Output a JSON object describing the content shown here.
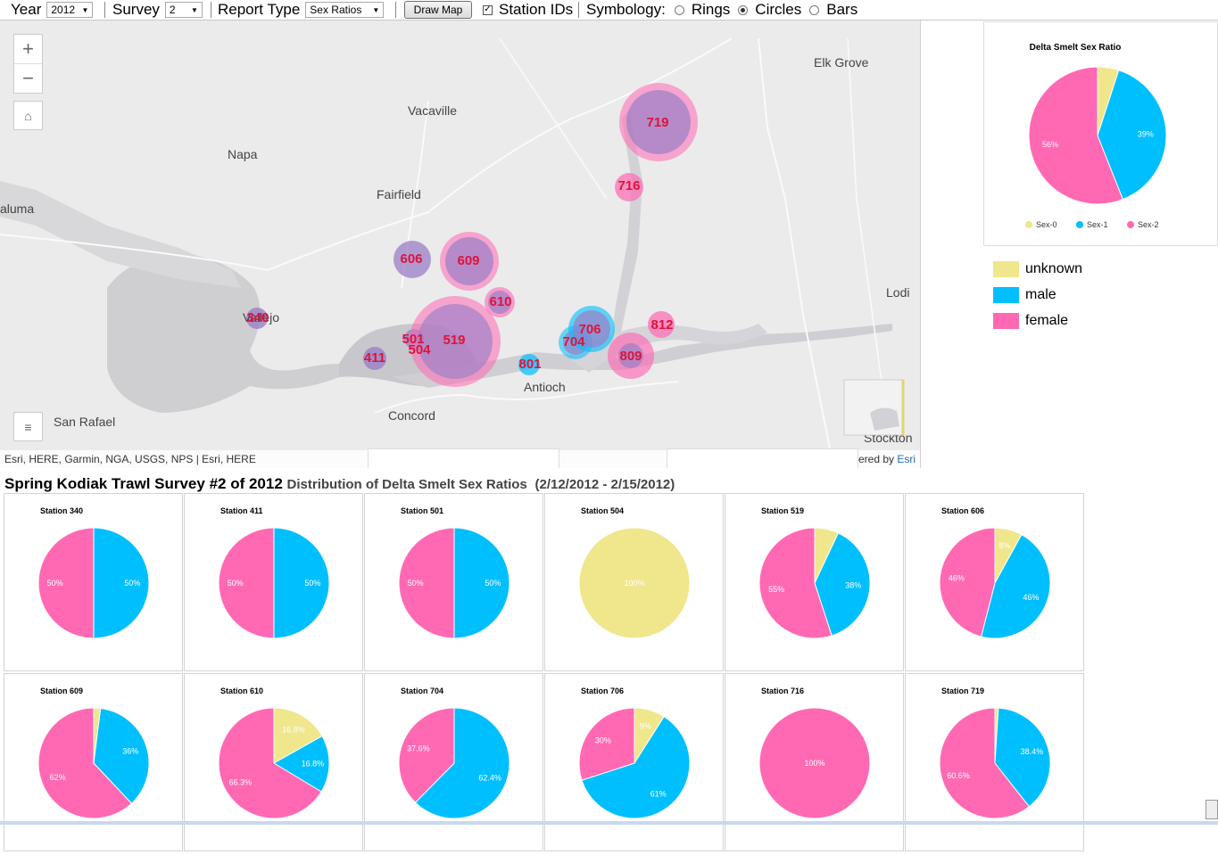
{
  "toolbar": {
    "year_label": "Year",
    "year_value": "2012",
    "survey_label": "Survey",
    "survey_value": "2",
    "report_label": "Report Type",
    "report_value": "Sex Ratios",
    "draw_button": "Draw Map",
    "station_ids_label": "Station IDs",
    "station_ids_checked": true,
    "symbology_label": "Symbology:",
    "symbology_options": [
      "Rings",
      "Circles",
      "Bars"
    ],
    "symbology_selected": "Circles"
  },
  "map": {
    "places": [
      "Elk Grove",
      "Vacaville",
      "Napa",
      "Fairfield",
      "aluma",
      "Vallejo",
      "Lodi",
      "Antioch",
      "San Rafael",
      "Concord",
      "Stockton"
    ],
    "attribution_left": "Esri, HERE, Garmin, NGA, USGS, NPS | Esri, HERE",
    "attribution_right_prefix": "ered by ",
    "attribution_right_link": "Esri",
    "stations": [
      {
        "id": "719",
        "female": 0.606,
        "male": 0.384,
        "unknown": 0.01
      },
      {
        "id": "716",
        "female": 1.0,
        "male": 0,
        "unknown": 0
      },
      {
        "id": "606",
        "female": 0.46,
        "male": 0.46,
        "unknown": 0.08
      },
      {
        "id": "609",
        "female": 0.62,
        "male": 0.36,
        "unknown": 0.02
      },
      {
        "id": "610",
        "female": 0.663,
        "male": 0.168,
        "unknown": 0.168
      },
      {
        "id": "340",
        "female": 0.5,
        "male": 0.5,
        "unknown": 0
      },
      {
        "id": "501",
        "female": 0.5,
        "male": 0.5,
        "unknown": 0
      },
      {
        "id": "504",
        "female": 0,
        "male": 0,
        "unknown": 1.0
      },
      {
        "id": "519",
        "female": 0.55,
        "male": 0.38,
        "unknown": 0.07
      },
      {
        "id": "411",
        "female": 0.5,
        "male": 0.5,
        "unknown": 0
      },
      {
        "id": "801",
        "female": 0,
        "male": 1.0,
        "unknown": 0
      },
      {
        "id": "706",
        "female": 0.3,
        "male": 0.61,
        "unknown": 0.09
      },
      {
        "id": "704",
        "female": 0.376,
        "male": 0.624,
        "unknown": 0
      },
      {
        "id": "812",
        "female": 1.0,
        "male": 0,
        "unknown": 0
      },
      {
        "id": "809",
        "female": 0.8,
        "male": 0.2,
        "unknown": 0
      }
    ]
  },
  "side_chart": {
    "title": "Delta Smelt Sex Ratio",
    "slices": [
      {
        "name": "Sex-0",
        "value": 5,
        "color": "#f0e68c",
        "label": ""
      },
      {
        "name": "Sex-1",
        "value": 39,
        "color": "#00bfff",
        "label": "39%"
      },
      {
        "name": "Sex-2",
        "value": 56,
        "color": "#ff69b4",
        "label": "56%"
      }
    ]
  },
  "legend": [
    {
      "label": "unknown",
      "color": "#f0e68c"
    },
    {
      "label": "male",
      "color": "#00bfff"
    },
    {
      "label": "female",
      "color": "#ff69b4"
    }
  ],
  "headline": {
    "title": "Spring Kodiak Trawl Survey #2 of 2012",
    "subtitle": "Distribution of Delta Smelt Sex Ratios",
    "dates": "(2/12/2012 - 2/15/2012)"
  },
  "colors": {
    "unknown": "#f0e68c",
    "male": "#00bfff",
    "female": "#ff69b4"
  },
  "chart_data": [
    {
      "type": "pie",
      "title": "Station 340",
      "categories": [
        "unknown",
        "male",
        "female"
      ],
      "values": [
        0,
        50,
        50
      ],
      "labels": [
        "",
        "50%",
        "50%"
      ]
    },
    {
      "type": "pie",
      "title": "Station 411",
      "categories": [
        "unknown",
        "male",
        "female"
      ],
      "values": [
        0,
        50,
        50
      ],
      "labels": [
        "",
        "50%",
        "50%"
      ]
    },
    {
      "type": "pie",
      "title": "Station 501",
      "categories": [
        "unknown",
        "male",
        "female"
      ],
      "values": [
        0,
        50,
        50
      ],
      "labels": [
        "",
        "50%",
        "50%"
      ]
    },
    {
      "type": "pie",
      "title": "Station 504",
      "categories": [
        "unknown",
        "male",
        "female"
      ],
      "values": [
        100,
        0,
        0
      ],
      "labels": [
        "100%",
        "",
        ""
      ]
    },
    {
      "type": "pie",
      "title": "Station 519",
      "categories": [
        "unknown",
        "male",
        "female"
      ],
      "values": [
        7,
        38,
        55
      ],
      "labels": [
        "",
        "38%",
        "55%"
      ]
    },
    {
      "type": "pie",
      "title": "Station 606",
      "categories": [
        "unknown",
        "male",
        "female"
      ],
      "values": [
        8,
        46,
        46
      ],
      "labels": [
        "8%",
        "46%",
        "46%"
      ]
    },
    {
      "type": "pie",
      "title": "Station 609",
      "categories": [
        "unknown",
        "male",
        "female"
      ],
      "values": [
        2,
        36,
        62
      ],
      "labels": [
        "",
        "36%",
        "62%"
      ]
    },
    {
      "type": "pie",
      "title": "Station 610",
      "categories": [
        "unknown",
        "male",
        "female"
      ],
      "values": [
        16.8,
        16.8,
        66.3
      ],
      "labels": [
        "16.8%",
        "16.8%",
        "66.3%"
      ]
    },
    {
      "type": "pie",
      "title": "Station 704",
      "categories": [
        "unknown",
        "male",
        "female"
      ],
      "values": [
        0,
        62.4,
        37.6
      ],
      "labels": [
        "",
        "62.4%",
        "37.6%"
      ]
    },
    {
      "type": "pie",
      "title": "Station 706",
      "categories": [
        "unknown",
        "male",
        "female"
      ],
      "values": [
        9,
        61,
        30
      ],
      "labels": [
        "9%",
        "61%",
        "30%"
      ]
    },
    {
      "type": "pie",
      "title": "Station 716",
      "categories": [
        "unknown",
        "male",
        "female"
      ],
      "values": [
        0,
        0,
        100
      ],
      "labels": [
        "",
        "",
        "100%"
      ]
    },
    {
      "type": "pie",
      "title": "Station 719",
      "categories": [
        "unknown",
        "male",
        "female"
      ],
      "values": [
        1,
        38.4,
        60.6
      ],
      "labels": [
        "",
        "38.4%",
        "60.6%"
      ]
    }
  ]
}
